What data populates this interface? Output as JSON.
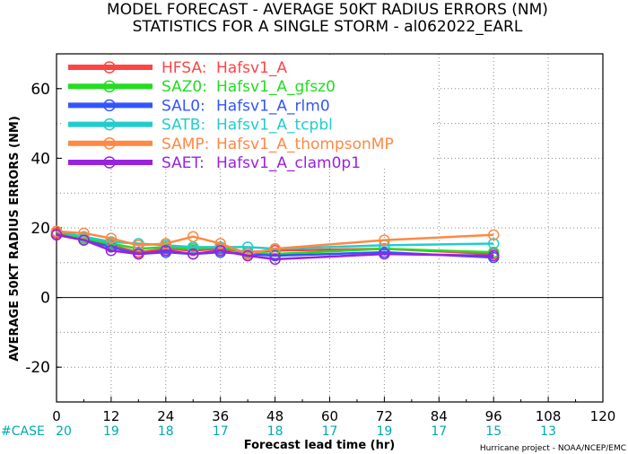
{
  "chart_data": {
    "type": "line",
    "title": "MODEL FORECAST - AVERAGE 50KT RADIUS ERRORS (NM)",
    "subtitle": "STATISTICS FOR A SINGLE STORM - al062022_EARL",
    "xlabel": "Forecast lead time (hr)",
    "ylabel": "AVERAGE 50KT RADIUS ERRORS (NM)",
    "xlim": [
      0,
      120
    ],
    "ylim": [
      -30,
      70
    ],
    "x_ticks": [
      0,
      12,
      24,
      36,
      48,
      60,
      72,
      84,
      96,
      108,
      120
    ],
    "y_ticks": [
      -20,
      0,
      20,
      40,
      60
    ],
    "grid": true,
    "legend_position": "top-left",
    "case_label": "#CASE",
    "case_color": "#00aaaa",
    "cases": [
      {
        "x": 0,
        "n": "20"
      },
      {
        "x": 12,
        "n": "19"
      },
      {
        "x": 24,
        "n": "18"
      },
      {
        "x": 36,
        "n": "17"
      },
      {
        "x": 48,
        "n": "18"
      },
      {
        "x": 60,
        "n": "17"
      },
      {
        "x": 72,
        "n": "19"
      },
      {
        "x": 84,
        "n": "17"
      },
      {
        "x": 96,
        "n": "15"
      },
      {
        "x": 108,
        "n": "13"
      }
    ],
    "credit": "Hurricane project - NOAA/NCEP/EMC",
    "series": [
      {
        "name": "HFSA:",
        "desc": "Hafsv1_A",
        "color": "#ff4444",
        "x": [
          0,
          6,
          12,
          18,
          24,
          30,
          36,
          42,
          48,
          72,
          96
        ],
        "y": [
          18.5,
          17,
          15,
          13,
          14,
          13.5,
          14,
          13,
          13.5,
          14,
          12.5
        ]
      },
      {
        "name": "SAZ0:",
        "desc": "Hafsv1_A_gfsz0",
        "color": "#22dd22",
        "x": [
          0,
          6,
          12,
          18,
          24,
          30,
          36,
          42,
          48,
          72,
          96
        ],
        "y": [
          19,
          17,
          15.5,
          14,
          14.5,
          14,
          14.5,
          13,
          12.5,
          14,
          13
        ]
      },
      {
        "name": "SAL0:",
        "desc": "Hafsv1_A_rlm0",
        "color": "#3355ff",
        "x": [
          0,
          6,
          12,
          18,
          24,
          30,
          36,
          42,
          48,
          72,
          96
        ],
        "y": [
          18,
          16.5,
          14.5,
          12.5,
          13,
          12.5,
          13,
          12.5,
          12,
          13,
          11.5
        ]
      },
      {
        "name": "SATB:",
        "desc": "Hafsv1_A_tcpbl",
        "color": "#22cccc",
        "x": [
          0,
          6,
          12,
          18,
          24,
          30,
          36,
          42,
          48,
          72,
          96
        ],
        "y": [
          19,
          17.5,
          16,
          15.5,
          15,
          14.5,
          14.5,
          14.5,
          14,
          15,
          15.5
        ]
      },
      {
        "name": "SAMP:",
        "desc": "Hafsv1_A_thompsonMP",
        "color": "#ff8844",
        "x": [
          0,
          6,
          12,
          18,
          24,
          30,
          36,
          42,
          48,
          72,
          96
        ],
        "y": [
          19,
          18.5,
          17,
          15,
          15.5,
          17.5,
          15.5,
          12.5,
          14,
          16.5,
          18
        ]
      },
      {
        "name": "SAET:",
        "desc": "Hafsv1_A_clam0p1",
        "color": "#9922dd",
        "x": [
          0,
          6,
          12,
          18,
          24,
          30,
          36,
          42,
          48,
          72,
          96
        ],
        "y": [
          18,
          16.5,
          13.5,
          12.5,
          13.5,
          12.5,
          13.5,
          12,
          11,
          12.5,
          12
        ]
      }
    ]
  }
}
